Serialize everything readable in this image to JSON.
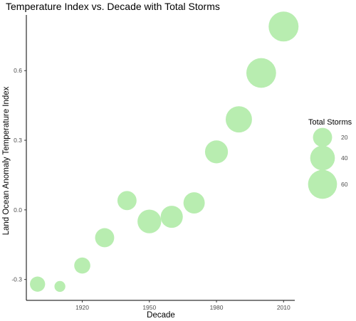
{
  "chart_data": {
    "type": "scatter",
    "title": "Temperature Index vs. Decade with Total Storms",
    "xlabel": "Decade",
    "ylabel": "Land Ocean Anomaly Temperature Index",
    "x_ticks": [
      1920,
      1950,
      1980,
      2010
    ],
    "y_ticks": [
      -0.3,
      0.0,
      0.3,
      0.6
    ],
    "y_tick_labels": [
      "-0.3",
      "0.0",
      "0.3",
      "0.6"
    ],
    "xlim": [
      1895,
      2015
    ],
    "ylim": [
      -0.39,
      0.84
    ],
    "grid": false,
    "legend_position": "right",
    "point_color": "#b8edb0",
    "size_legend": {
      "title": "Total Storms",
      "values": [
        20,
        40,
        60
      ],
      "labels": [
        "20",
        "40",
        "60"
      ]
    },
    "points": [
      {
        "x": 1900,
        "y": -0.32,
        "storms": 10
      },
      {
        "x": 1910,
        "y": -0.33,
        "storms": 3
      },
      {
        "x": 1920,
        "y": -0.24,
        "storms": 12
      },
      {
        "x": 1930,
        "y": -0.12,
        "storms": 20
      },
      {
        "x": 1940,
        "y": 0.04,
        "storms": 20
      },
      {
        "x": 1950,
        "y": -0.05,
        "storms": 36
      },
      {
        "x": 1960,
        "y": -0.03,
        "storms": 30
      },
      {
        "x": 1970,
        "y": 0.03,
        "storms": 27
      },
      {
        "x": 1980,
        "y": 0.25,
        "storms": 33
      },
      {
        "x": 1990,
        "y": 0.39,
        "storms": 47
      },
      {
        "x": 2000,
        "y": 0.59,
        "storms": 64
      },
      {
        "x": 2010,
        "y": 0.79,
        "storms": 65
      }
    ]
  }
}
